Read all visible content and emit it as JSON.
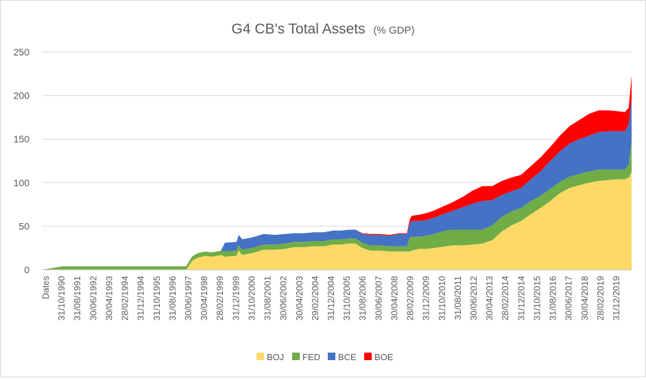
{
  "chart_data": {
    "type": "area",
    "stacked": true,
    "title": "G4 CB's Total Assets",
    "subtitle": "(% GDP)",
    "xlabel": "",
    "ylabel": "",
    "x_first_tick_label": "Dates",
    "x_tick_labels": [
      "31/10/1990",
      "31/08/1991",
      "30/06/1992",
      "30/04/1993",
      "28/02/1994",
      "31/12/1994",
      "31/10/1995",
      "31/08/1996",
      "30/06/1997",
      "30/04/1998",
      "28/02/1999",
      "31/12/1999",
      "31/10/2000",
      "31/08/2001",
      "30/06/2002",
      "30/04/2003",
      "29/02/2004",
      "31/12/2004",
      "31/10/2005",
      "31/08/2006",
      "30/06/2007",
      "30/04/2008",
      "28/02/2009",
      "31/12/2009",
      "31/10/2010",
      "31/08/2011",
      "30/06/2012",
      "30/04/2013",
      "28/02/2014",
      "31/12/2014",
      "31/10/2015",
      "31/08/2016",
      "30/06/2017",
      "30/04/2018",
      "28/02/2019",
      "31/12/2019"
    ],
    "y_ticks": [
      0,
      50,
      100,
      150,
      200,
      250
    ],
    "ylim": [
      0,
      250
    ],
    "grid": "horizontal",
    "legend_position": "bottom",
    "colors": {
      "BOJ": "#FFD966",
      "FED": "#70AD47",
      "BCE": "#4472C4",
      "BOE": "#FF0000",
      "grid": "#d9d9d9",
      "text": "#595959"
    },
    "x": [
      1989.75,
      1990.83,
      1992.0,
      1994.0,
      1996.0,
      1997.2,
      1997.5,
      1997.8,
      1998.2,
      1998.5,
      1998.8,
      1999.0,
      1999.2,
      1999.8,
      1999.92,
      2000.1,
      2000.6,
      2001.2,
      2001.8,
      2002.3,
      2002.8,
      2003.3,
      2003.8,
      2004.3,
      2004.8,
      2005.2,
      2005.6,
      2005.95,
      2006.3,
      2006.7,
      2007.2,
      2007.7,
      2008.2,
      2008.6,
      2008.75,
      2008.85,
      2009.2,
      2009.6,
      2010.0,
      2010.6,
      2011.0,
      2011.5,
      2012.0,
      2012.5,
      2013.0,
      2013.5,
      2014.0,
      2014.5,
      2015.0,
      2015.5,
      2016.0,
      2016.5,
      2017.0,
      2017.5,
      2018.0,
      2018.5,
      2019.0,
      2019.5,
      2019.85,
      2020.05,
      2020.2
    ],
    "series": [
      {
        "name": "BOJ",
        "values": [
          0,
          0,
          0,
          0,
          0,
          0,
          10,
          14,
          16,
          15,
          16,
          17,
          15,
          16,
          22,
          17,
          19,
          23,
          23,
          24,
          26,
          26,
          27,
          27,
          29,
          29,
          30,
          30,
          25,
          22,
          22,
          21,
          21,
          21,
          21,
          22,
          24,
          24,
          25,
          27,
          28,
          28,
          29,
          30,
          34,
          44,
          51,
          56,
          64,
          71,
          79,
          88,
          94,
          97,
          100,
          102,
          103,
          104,
          104,
          106,
          112
        ]
      },
      {
        "name": "FED",
        "values": [
          0,
          4,
          4,
          4,
          4,
          4,
          5,
          5,
          5,
          5,
          5,
          5,
          6,
          6,
          6,
          6,
          6,
          6,
          6,
          6,
          6,
          6,
          6,
          6,
          6,
          6,
          6,
          6,
          6,
          6,
          6,
          6,
          6,
          6,
          16,
          16,
          14,
          15,
          16,
          18,
          18,
          18,
          17,
          16,
          17,
          17,
          16,
          15,
          15,
          14,
          14,
          13,
          13,
          13,
          13,
          13,
          12,
          11,
          11,
          15,
          35
        ]
      },
      {
        "name": "BCE",
        "values": [
          0,
          0,
          0,
          0,
          0,
          0,
          0,
          0,
          0,
          0,
          0,
          0,
          10,
          10,
          12,
          12,
          12,
          12,
          11,
          11,
          10,
          10,
          10,
          10,
          10,
          10,
          10,
          10,
          10,
          12,
          12,
          12,
          14,
          14,
          16,
          18,
          18,
          18,
          19,
          20,
          22,
          26,
          30,
          33,
          29,
          25,
          23,
          23,
          25,
          28,
          32,
          35,
          38,
          40,
          41,
          43,
          44,
          44,
          44,
          46,
          50
        ]
      },
      {
        "name": "BOE",
        "values": [
          0,
          0,
          0,
          0,
          0,
          0,
          0,
          0,
          0,
          0,
          0,
          0,
          0,
          0,
          0,
          0,
          0,
          0,
          0,
          0,
          0,
          0,
          0,
          0,
          0,
          0,
          0,
          0,
          1,
          1,
          1,
          1,
          1,
          1,
          5,
          6,
          7,
          8,
          8,
          9,
          10,
          12,
          15,
          17,
          16,
          16,
          16,
          15,
          15,
          16,
          16,
          18,
          20,
          22,
          25,
          25,
          24,
          23,
          22,
          19,
          26
        ]
      }
    ]
  }
}
